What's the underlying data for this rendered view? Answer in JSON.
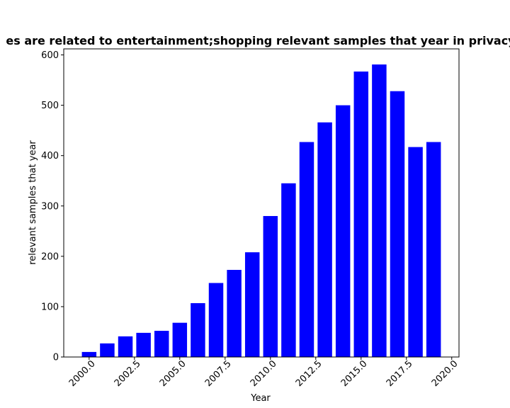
{
  "chart_data": {
    "type": "bar",
    "title": "es are related to entertainment;shopping relevant samples that year in privacy",
    "xlabel": "Year",
    "ylabel": "relevant samples that year",
    "x": [
      2000,
      2001,
      2002,
      2003,
      2004,
      2005,
      2006,
      2007,
      2008,
      2009,
      2010,
      2011,
      2012,
      2013,
      2014,
      2015,
      2016,
      2017,
      2018,
      2019
    ],
    "values": [
      10,
      27,
      41,
      48,
      52,
      68,
      107,
      147,
      173,
      208,
      280,
      345,
      427,
      466,
      500,
      567,
      581,
      528,
      417,
      427
    ],
    "xlim": [
      1998.6,
      2020.4
    ],
    "ylim": [
      0,
      612
    ],
    "xticks": [
      2000.0,
      2002.5,
      2005.0,
      2007.5,
      2010.0,
      2012.5,
      2015.0,
      2017.5,
      2020.0
    ],
    "xtick_labels": [
      "2000.0",
      "2002.5",
      "2005.0",
      "2007.5",
      "2010.0",
      "2012.5",
      "2015.0",
      "2017.5",
      "2020.0"
    ],
    "yticks": [
      0,
      100,
      200,
      300,
      400,
      500,
      600
    ],
    "ytick_labels": [
      "0",
      "100",
      "200",
      "300",
      "400",
      "500",
      "600"
    ],
    "bar_color": "#0000ff",
    "grid": false,
    "legend": "none"
  }
}
